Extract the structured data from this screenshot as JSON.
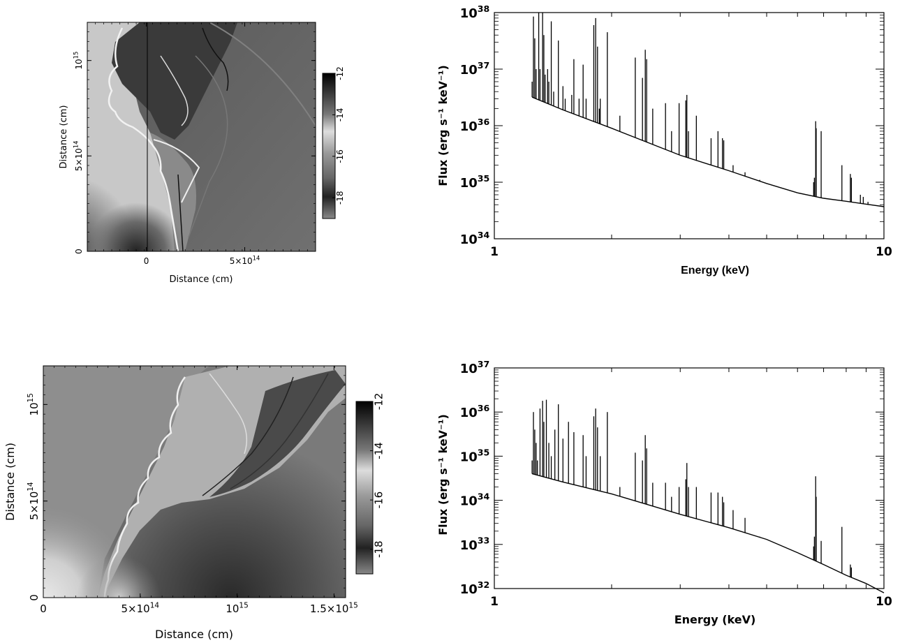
{
  "chart_data": [
    {
      "type": "heatmap",
      "panel": "top-left",
      "xlabel": "Distance (cm)",
      "ylabel": "Distance (cm)",
      "x_ticks": [
        {
          "value": 0,
          "label": "0"
        },
        {
          "value": 500000000000000,
          "label": "5×10",
          "exp": "14"
        }
      ],
      "y_ticks": [
        {
          "value": 0,
          "label": "0"
        },
        {
          "value": 500000000000000,
          "label": "5×10",
          "exp": "14"
        },
        {
          "value": 1000000000000000,
          "label": "10",
          "exp": "15"
        }
      ],
      "xlim": [
        -300000000000000,
        860000000000000
      ],
      "ylim": [
        0,
        1200000000000000
      ],
      "colorbar": {
        "range": [
          -19,
          -12
        ],
        "ticks": [
          "-12",
          "-14",
          "-16",
          "-18"
        ]
      }
    },
    {
      "type": "line",
      "panel": "top-right",
      "xscale": "log",
      "yscale": "log",
      "xlabel": "Energy (keV)",
      "ylabel": "Flux (erg s⁻¹ keV⁻¹)",
      "xlim": [
        1,
        10
      ],
      "ylim": [
        1e+34,
        1e+38
      ],
      "x_ticks": [
        "1",
        "10"
      ],
      "y_ticks": [
        {
          "value": 1e+34,
          "base": "10",
          "exp": "34"
        },
        {
          "value": 1e+35,
          "base": "10",
          "exp": "35"
        },
        {
          "value": 1e+36,
          "base": "10",
          "exp": "36"
        },
        {
          "value": 1e+37,
          "base": "10",
          "exp": "37"
        },
        {
          "value": 1e+38,
          "base": "10",
          "exp": "38"
        }
      ],
      "continuum": [
        [
          1.25,
          3.2e+36
        ],
        [
          1.5,
          1.9e+36
        ],
        [
          2,
          9e+35
        ],
        [
          3,
          3e+35
        ],
        [
          4,
          1.6e+35
        ],
        [
          5,
          9.5e+34
        ],
        [
          6,
          6.5e+34
        ],
        [
          7,
          5.2e+34
        ],
        [
          8,
          4.6e+34
        ],
        [
          9,
          4.1e+34
        ],
        [
          10,
          3.7e+34
        ]
      ],
      "lines": [
        [
          1.25,
          6e+36
        ],
        [
          1.26,
          8.5e+37
        ],
        [
          1.27,
          3.5e+37
        ],
        [
          1.28,
          1e+37
        ],
        [
          1.3,
          1e+38
        ],
        [
          1.31,
          1e+37
        ],
        [
          1.33,
          1e+38
        ],
        [
          1.34,
          4e+37
        ],
        [
          1.35,
          8e+36
        ],
        [
          1.37,
          1e+37
        ],
        [
          1.38,
          6e+36
        ],
        [
          1.4,
          7e+37
        ],
        [
          1.42,
          4e+36
        ],
        [
          1.46,
          3.2e+37
        ],
        [
          1.5,
          5e+36
        ],
        [
          1.52,
          3e+36
        ],
        [
          1.58,
          3.5e+36
        ],
        [
          1.6,
          1.5e+37
        ],
        [
          1.65,
          3e+36
        ],
        [
          1.69,
          1.2e+37
        ],
        [
          1.72,
          3e+36
        ],
        [
          1.8,
          6e+37
        ],
        [
          1.82,
          8e+37
        ],
        [
          1.84,
          2.5e+37
        ],
        [
          1.86,
          2e+36
        ],
        [
          1.87,
          3e+36
        ],
        [
          1.95,
          4.5e+37
        ],
        [
          2.1,
          1.5e+36
        ],
        [
          2.3,
          1.6e+37
        ],
        [
          2.4,
          7e+36
        ],
        [
          2.44,
          2.2e+37
        ],
        [
          2.46,
          1.5e+37
        ],
        [
          2.55,
          2e+36
        ],
        [
          2.75,
          2.5e+36
        ],
        [
          2.85,
          8e+35
        ],
        [
          2.98,
          2.5e+36
        ],
        [
          3.1,
          2.8e+36
        ],
        [
          3.12,
          3.5e+36
        ],
        [
          3.15,
          8e+35
        ],
        [
          3.3,
          1.5e+36
        ],
        [
          3.6,
          6e+35
        ],
        [
          3.75,
          8e+35
        ],
        [
          3.85,
          6e+35
        ],
        [
          3.88,
          5.5e+35
        ],
        [
          4.1,
          2e+35
        ],
        [
          4.4,
          1.5e+35
        ],
        [
          4.8,
          1.1e+35
        ],
        [
          6.6,
          1e+35
        ],
        [
          6.63,
          1.2e+35
        ],
        [
          6.68,
          1.2e+36
        ],
        [
          6.7,
          9e+35
        ],
        [
          6.9,
          8e+35
        ],
        [
          7.8,
          2e+35
        ],
        [
          8.2,
          1.4e+35
        ],
        [
          8.25,
          1.2e+35
        ],
        [
          8.7,
          6e+34
        ],
        [
          8.85,
          5.5e+34
        ],
        [
          9.1,
          4.5e+34
        ]
      ]
    },
    {
      "type": "heatmap",
      "panel": "bottom-left",
      "xlabel": "Distance (cm)",
      "ylabel": "Distance (cm)",
      "x_ticks": [
        {
          "value": 0,
          "label": "0"
        },
        {
          "value": 500000000000000,
          "label": "5×10",
          "exp": "14"
        },
        {
          "value": 1000000000000000,
          "label": "10",
          "exp": "15"
        },
        {
          "value": 1500000000000000,
          "label": "1.5×10",
          "exp": "15"
        }
      ],
      "y_ticks": [
        {
          "value": 0,
          "label": "0"
        },
        {
          "value": 500000000000000,
          "label": "5×10",
          "exp": "14"
        },
        {
          "value": 1000000000000000,
          "label": "10",
          "exp": "15"
        }
      ],
      "xlim": [
        0,
        1560000000000000
      ],
      "ylim": [
        0,
        1200000000000000
      ],
      "colorbar": {
        "range": [
          -19,
          -12
        ],
        "ticks": [
          "-12",
          "-14",
          "-16",
          "-18"
        ]
      }
    },
    {
      "type": "line",
      "panel": "bottom-right",
      "xscale": "log",
      "yscale": "log",
      "xlabel": "Energy (keV)",
      "ylabel": "Flux (erg s⁻¹ keV⁻¹)",
      "xlim": [
        1,
        10
      ],
      "ylim": [
        1e+32,
        1e+37
      ],
      "x_ticks": [
        "1",
        "10"
      ],
      "y_ticks": [
        {
          "value": 1e+32,
          "base": "10",
          "exp": "32"
        },
        {
          "value": 1e+33,
          "base": "10",
          "exp": "33"
        },
        {
          "value": 1e+34,
          "base": "10",
          "exp": "34"
        },
        {
          "value": 1e+35,
          "base": "10",
          "exp": "35"
        },
        {
          "value": 1e+36,
          "base": "10",
          "exp": "36"
        },
        {
          "value": 1e+37,
          "base": "10",
          "exp": "37"
        }
      ],
      "continuum": [
        [
          1.25,
          4e+34
        ],
        [
          1.5,
          2.6e+34
        ],
        [
          2,
          1.4e+34
        ],
        [
          3,
          4.8e+33
        ],
        [
          4,
          2.4e+33
        ],
        [
          5,
          1.3e+33
        ],
        [
          6,
          6.5e+32
        ],
        [
          7,
          3.5e+32
        ],
        [
          8,
          2e+32
        ],
        [
          9,
          1.3e+32
        ],
        [
          10,
          8e+31
        ]
      ],
      "lines": [
        [
          1.25,
          8e+34
        ],
        [
          1.26,
          1e+36
        ],
        [
          1.27,
          4e+35
        ],
        [
          1.28,
          2e+35
        ],
        [
          1.29,
          8e+34
        ],
        [
          1.31,
          1.2e+36
        ],
        [
          1.33,
          1.8e+36
        ],
        [
          1.34,
          6e+35
        ],
        [
          1.36,
          1.9e+36
        ],
        [
          1.38,
          2e+35
        ],
        [
          1.4,
          1e+35
        ],
        [
          1.43,
          4e+35
        ],
        [
          1.46,
          1.5e+36
        ],
        [
          1.5,
          2.5e+35
        ],
        [
          1.55,
          6e+35
        ],
        [
          1.6,
          3.5e+35
        ],
        [
          1.69,
          3e+35
        ],
        [
          1.72,
          1e+35
        ],
        [
          1.8,
          8e+35
        ],
        [
          1.82,
          1.2e+36
        ],
        [
          1.84,
          4.5e+35
        ],
        [
          1.87,
          1e+35
        ],
        [
          1.95,
          1e+36
        ],
        [
          2.1,
          2e+34
        ],
        [
          2.3,
          1.2e+35
        ],
        [
          2.4,
          8e+34
        ],
        [
          2.44,
          3e+35
        ],
        [
          2.46,
          1.5e+35
        ],
        [
          2.55,
          2.5e+34
        ],
        [
          2.75,
          2.5e+34
        ],
        [
          2.85,
          1.2e+34
        ],
        [
          2.98,
          2e+34
        ],
        [
          3.1,
          3e+34
        ],
        [
          3.12,
          7e+34
        ],
        [
          3.15,
          2e+34
        ],
        [
          3.3,
          2e+34
        ],
        [
          3.6,
          1.5e+34
        ],
        [
          3.75,
          1.5e+34
        ],
        [
          3.85,
          1.2e+34
        ],
        [
          3.88,
          9e+33
        ],
        [
          4.1,
          6e+33
        ],
        [
          4.4,
          4e+33
        ],
        [
          4.8,
          1.5e+33
        ],
        [
          6.6,
          9e+32
        ],
        [
          6.63,
          1.5e+33
        ],
        [
          6.68,
          3.5e+34
        ],
        [
          6.7,
          1.2e+34
        ],
        [
          6.9,
          1.2e+33
        ],
        [
          7.8,
          2.5e+33
        ],
        [
          8.2,
          3.5e+32
        ],
        [
          8.25,
          3e+32
        ],
        [
          8.7,
          1.5e+32
        ],
        [
          9.1,
          1.2e+32
        ]
      ]
    }
  ]
}
